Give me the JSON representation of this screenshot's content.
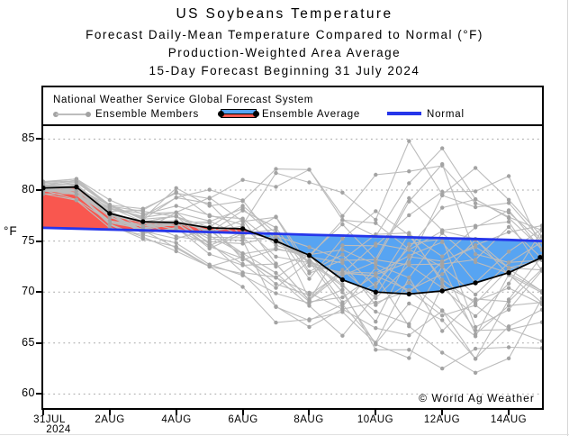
{
  "titles": {
    "line1": "US Soybeans Temperature",
    "line2": "Forecast Daily-Mean Temperature Compared to Normal (°F)",
    "line3": "Production-Weighted Area Average",
    "line4": "15-Day Forecast Beginning 31 July 2024"
  },
  "legend": {
    "source": "National Weather Service Global Forecast System",
    "members": "Ensemble Members",
    "average": "Ensemble Average",
    "normal": "Normal"
  },
  "watermark": "© World Ag Weather",
  "axes": {
    "y_unit": "°F",
    "y_ticks": [
      85,
      80,
      75,
      70,
      65,
      60
    ],
    "y_min": 58.62,
    "y_max": 86.27,
    "x_ticks": [
      {
        "day": 0,
        "label": "31JUL",
        "sub": "2024",
        "dx": 7
      },
      {
        "day": 2,
        "label": "2AUG"
      },
      {
        "day": 4,
        "label": "4AUG"
      },
      {
        "day": 6,
        "label": "6AUG"
      },
      {
        "day": 8,
        "label": "8AUG"
      },
      {
        "day": 10,
        "label": "10AUG"
      },
      {
        "day": 12,
        "label": "12AUG"
      },
      {
        "day": 14,
        "label": "14AUG"
      }
    ]
  },
  "colors": {
    "above_normal_fill": "#f9574f",
    "below_normal_fill": "#57a4f2",
    "normal_line": "#2636ea",
    "average_line": "#000000",
    "member_line": "#bcbcbc",
    "member_dot": "#a3a3a3",
    "gridline": "#a6a6a6",
    "axis": "#000000"
  },
  "chart_data": {
    "type": "line",
    "title": "US Soybeans Temperature",
    "subtitle": "Forecast Daily-Mean Temperature Compared to Normal (°F), Production-Weighted Area Average, 15-Day Forecast Beginning 31 July 2024",
    "ylabel": "°F",
    "ylim": [
      58.6,
      86.3
    ],
    "grid": "horizontal-dotted",
    "legend_position": "top",
    "x": [
      "31JUL",
      "1AUG",
      "2AUG",
      "3AUG",
      "4AUG",
      "5AUG",
      "6AUG",
      "7AUG",
      "8AUG",
      "9AUG",
      "10AUG",
      "11AUG",
      "12AUG",
      "13AUG",
      "14AUG",
      "15AUG"
    ],
    "series": [
      {
        "name": "Ensemble Average",
        "values": [
          80.2,
          80.3,
          77.7,
          76.9,
          76.8,
          76.3,
          76.2,
          75.0,
          73.6,
          71.2,
          70.0,
          69.8,
          70.1,
          70.9,
          71.9,
          73.4
        ]
      },
      {
        "name": "Normal",
        "values": [
          76.3,
          76.22,
          76.13,
          76.05,
          75.96,
          75.88,
          75.79,
          75.71,
          75.62,
          75.54,
          75.45,
          75.37,
          75.28,
          75.2,
          75.11,
          75.0
        ]
      }
    ],
    "fills": {
      "above_normal": "red shading where Ensemble Average is above Normal (31JUL to ~6AUG)",
      "below_normal": "blue shading where Ensemble Average is below Normal (~7AUG to 15AUG)"
    },
    "ensemble_members": {
      "count": 30,
      "seed": 11,
      "min": [
        79.6,
        79.0,
        76.3,
        75.2,
        74.0,
        72.5,
        70.5,
        67.0,
        63.8,
        62.8,
        61.8,
        61.8,
        62.5,
        61.5,
        63.5,
        64.5
      ],
      "max": [
        81.0,
        81.5,
        79.6,
        78.8,
        80.6,
        80.8,
        81.0,
        82.2,
        82.0,
        81.0,
        81.5,
        84.8,
        85.0,
        83.0,
        82.5,
        81.5
      ],
      "note": "approx. 30 gray member traces with a dot at each day; per-member values not individually readable, regenerated within the min/max envelope"
    }
  }
}
